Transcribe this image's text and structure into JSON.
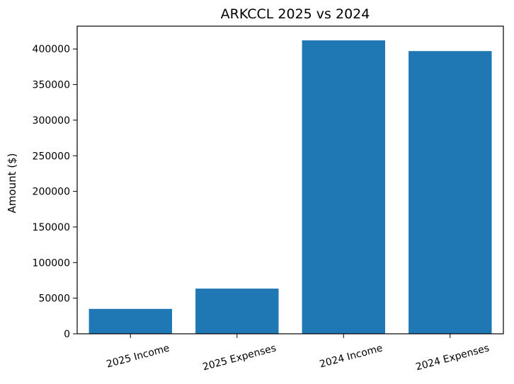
{
  "chart_data": {
    "type": "bar",
    "title": "ARKCCL 2025 vs 2024",
    "xlabel": "",
    "ylabel": "Amount ($)",
    "categories": [
      "2025 Income",
      "2025 Expenses",
      "2024 Income",
      "2024 Expenses"
    ],
    "values": [
      35000,
      63500,
      412000,
      397000
    ],
    "ylim": [
      0,
      432000
    ],
    "yticks": [
      0,
      50000,
      100000,
      150000,
      200000,
      250000,
      300000,
      350000,
      400000
    ],
    "bar_color": "#1f77b4",
    "grid": false,
    "legend": "none"
  }
}
